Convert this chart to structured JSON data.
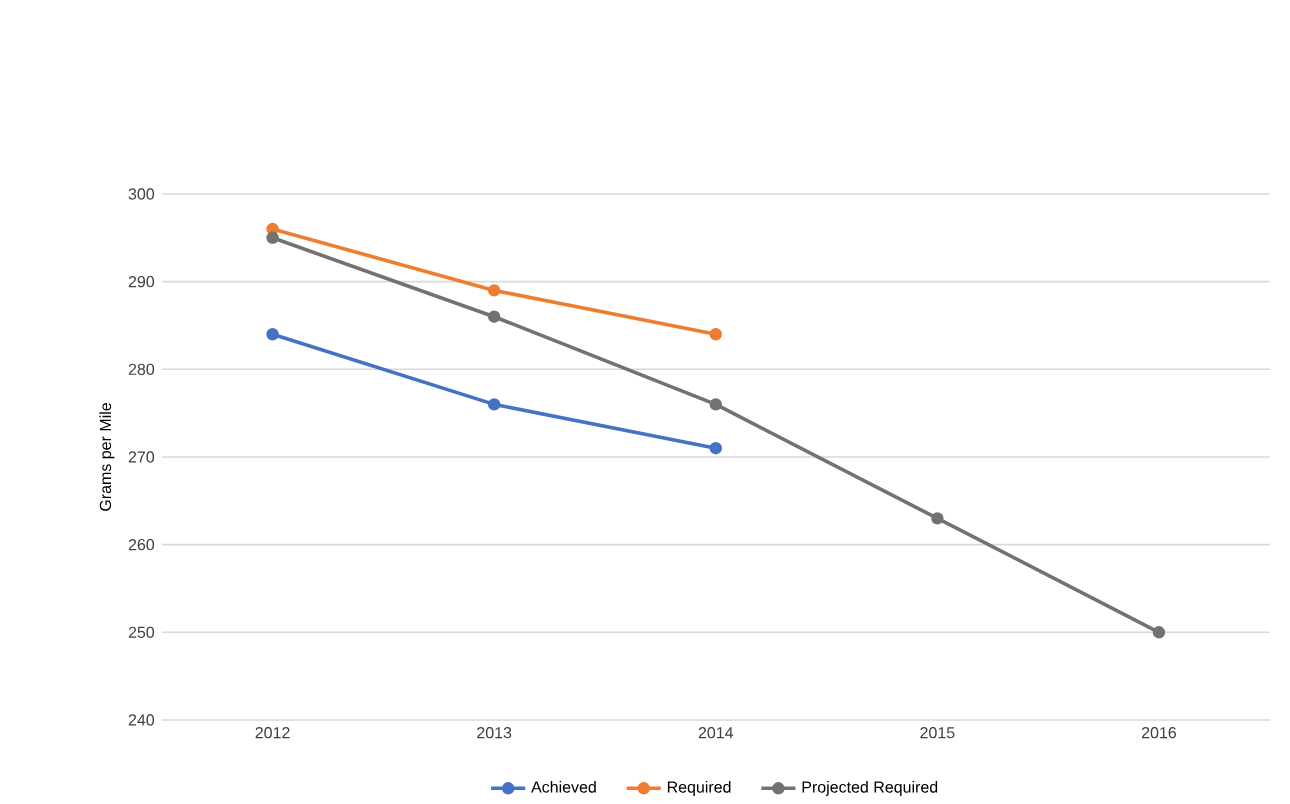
{
  "chart_data": {
    "type": "line",
    "ylabel": "Grams per Mile",
    "categories": [
      "2012",
      "2013",
      "2014",
      "2015",
      "2016"
    ],
    "series": [
      {
        "name": "Achieved",
        "color": "#4472c4",
        "values": [
          284,
          276,
          271,
          null,
          null
        ]
      },
      {
        "name": "Required",
        "color": "#ed7d31",
        "values": [
          296,
          289,
          284,
          null,
          null
        ]
      },
      {
        "name": "Projected Required",
        "color": "#767171",
        "values": [
          295,
          286,
          276,
          263,
          250
        ]
      }
    ],
    "ylim": [
      240,
      300
    ],
    "yticks": [
      240,
      250,
      260,
      270,
      280,
      290,
      300
    ],
    "grid": "y",
    "legend": "bottom",
    "marker": "circle"
  }
}
